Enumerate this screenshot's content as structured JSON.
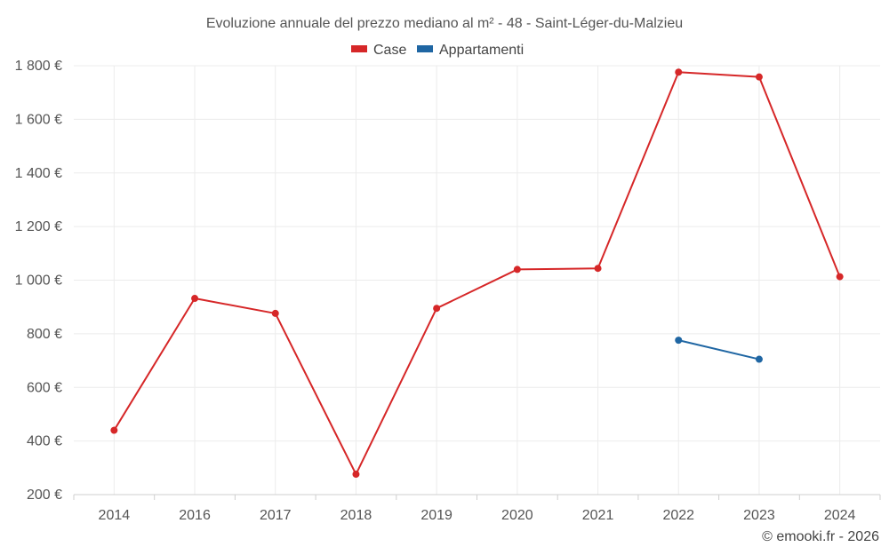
{
  "chart_data": {
    "type": "line",
    "title": "Evoluzione annuale del prezzo mediano al m² - 48 - Saint-Léger-du-Malzieu",
    "categories": [
      "2014",
      "2016",
      "2017",
      "2018",
      "2019",
      "2020",
      "2021",
      "2022",
      "2023",
      "2024"
    ],
    "y_ticks": [
      200,
      400,
      600,
      800,
      1000,
      1200,
      1400,
      1600,
      1800
    ],
    "y_tick_labels": [
      "200 €",
      "400 €",
      "600 €",
      "800 €",
      "1 000 €",
      "1 200 €",
      "1 400 €",
      "1 600 €",
      "1 800 €"
    ],
    "ylim": [
      200,
      1800
    ],
    "grid": true,
    "legend_position": "top-center",
    "series": [
      {
        "name": "Case",
        "color": "#d62728",
        "values": [
          440,
          932,
          876,
          276,
          895,
          1040,
          1044,
          1776,
          1758,
          1013
        ]
      },
      {
        "name": "Appartamenti",
        "color": "#1f66a3",
        "values": [
          null,
          null,
          null,
          null,
          null,
          null,
          null,
          776,
          705,
          null
        ]
      }
    ],
    "credit": "© emooki.fr - 2026"
  }
}
